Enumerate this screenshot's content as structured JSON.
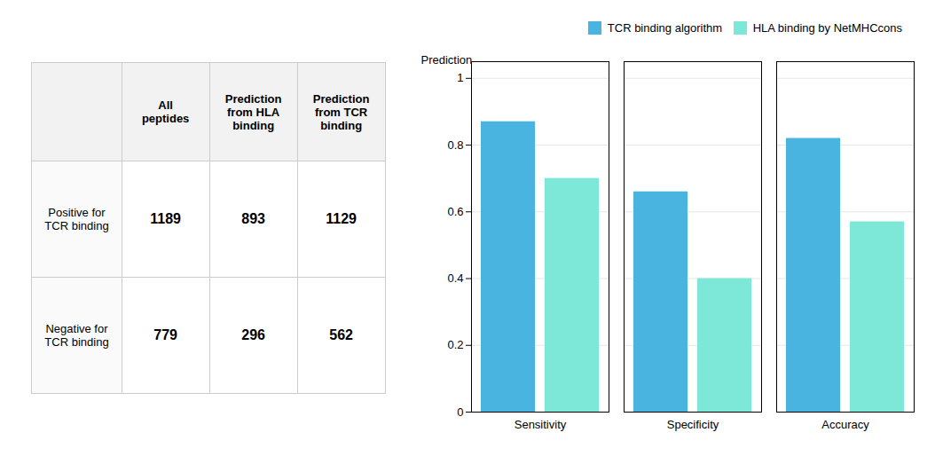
{
  "chart_data": [
    {
      "type": "table",
      "categories": [
        "All\npeptides",
        "Prediction\nfrom HLA\nbinding",
        "Prediction\nfrom TCR\nbinding"
      ],
      "series": [
        {
          "name": "Positive for\nTCR binding",
          "values": [
            1189,
            893,
            1129
          ]
        },
        {
          "name": "Negative for\nTCR binding",
          "values": [
            779,
            296,
            562
          ]
        }
      ]
    },
    {
      "type": "bar",
      "categories": [
        "Sensitivity",
        "Specificity",
        "Accuracy"
      ],
      "series": [
        {
          "name": "TCR binding algorithm",
          "color": "#4ab4e0",
          "values": [
            0.87,
            0.66,
            0.82
          ]
        },
        {
          "name": "HLA binding by NetMHCcons",
          "color": "#7de8d8",
          "values": [
            0.7,
            0.4,
            0.57
          ]
        }
      ],
      "ylabel": "Prediction",
      "ylim": [
        0,
        1.05
      ],
      "yticks": [
        0,
        0.2,
        0.4,
        0.6,
        0.8,
        1
      ],
      "grid": true,
      "legend": "upper right"
    }
  ]
}
